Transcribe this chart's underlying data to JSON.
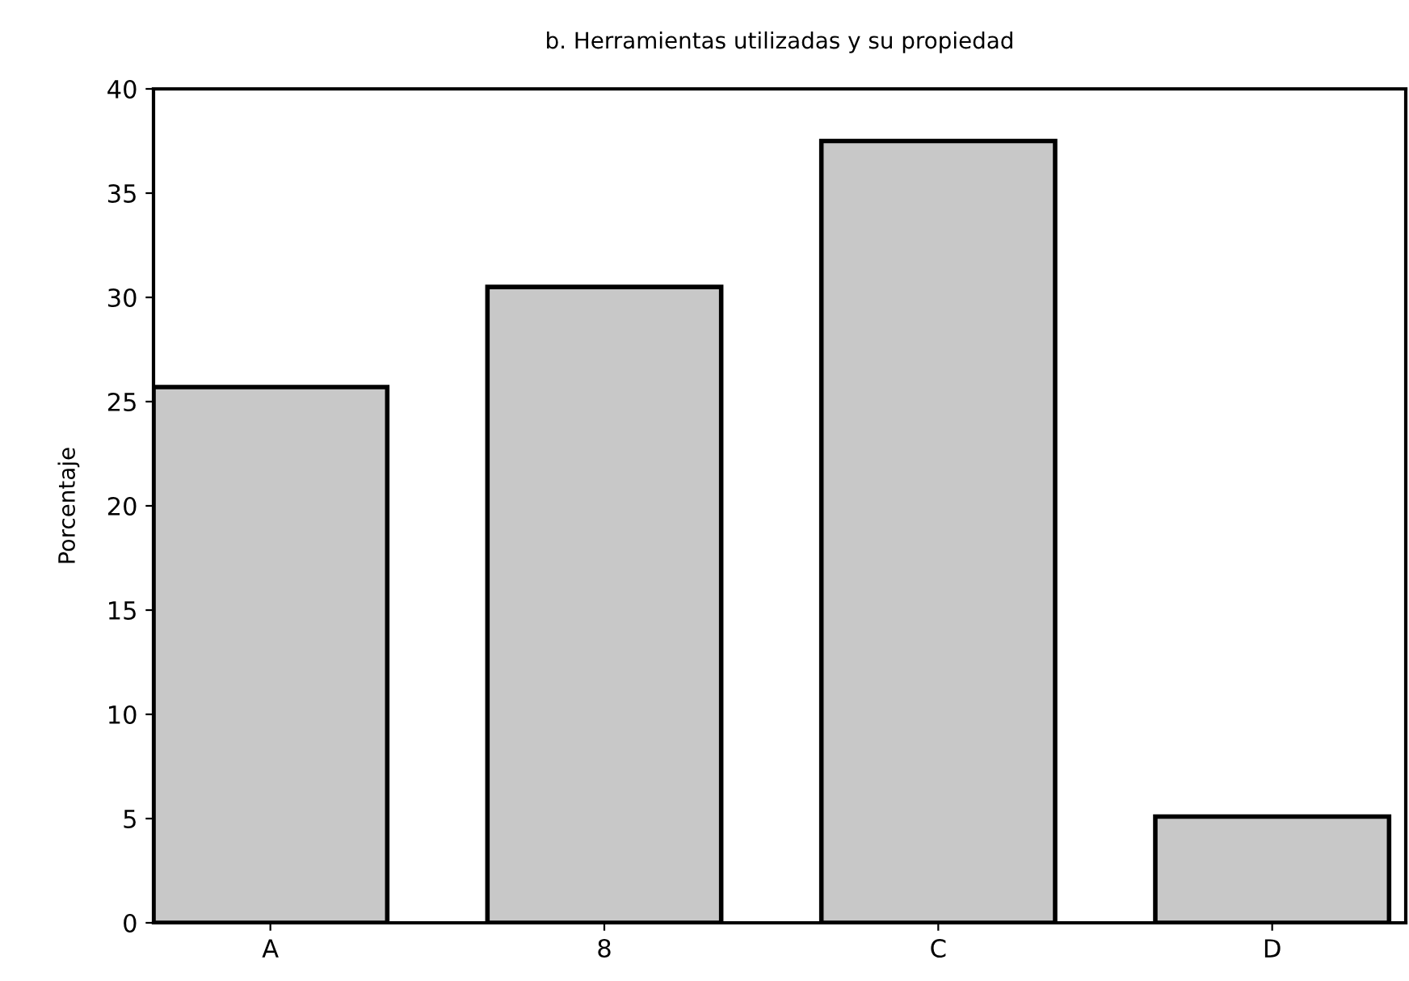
{
  "chart_data": {
    "type": "bar",
    "title": "b. Herramientas utilizadas y su propiedad",
    "ylabel": "Porcentaje",
    "categories": [
      "A",
      "8",
      "C",
      "D"
    ],
    "values": [
      25.7,
      30.5,
      37.5,
      5.1
    ],
    "color": "#c8c8c8",
    "ylim": [
      0,
      40
    ],
    "yticks": [
      0,
      5,
      10,
      15,
      20,
      25,
      30,
      35,
      40
    ],
    "grid": false
  }
}
